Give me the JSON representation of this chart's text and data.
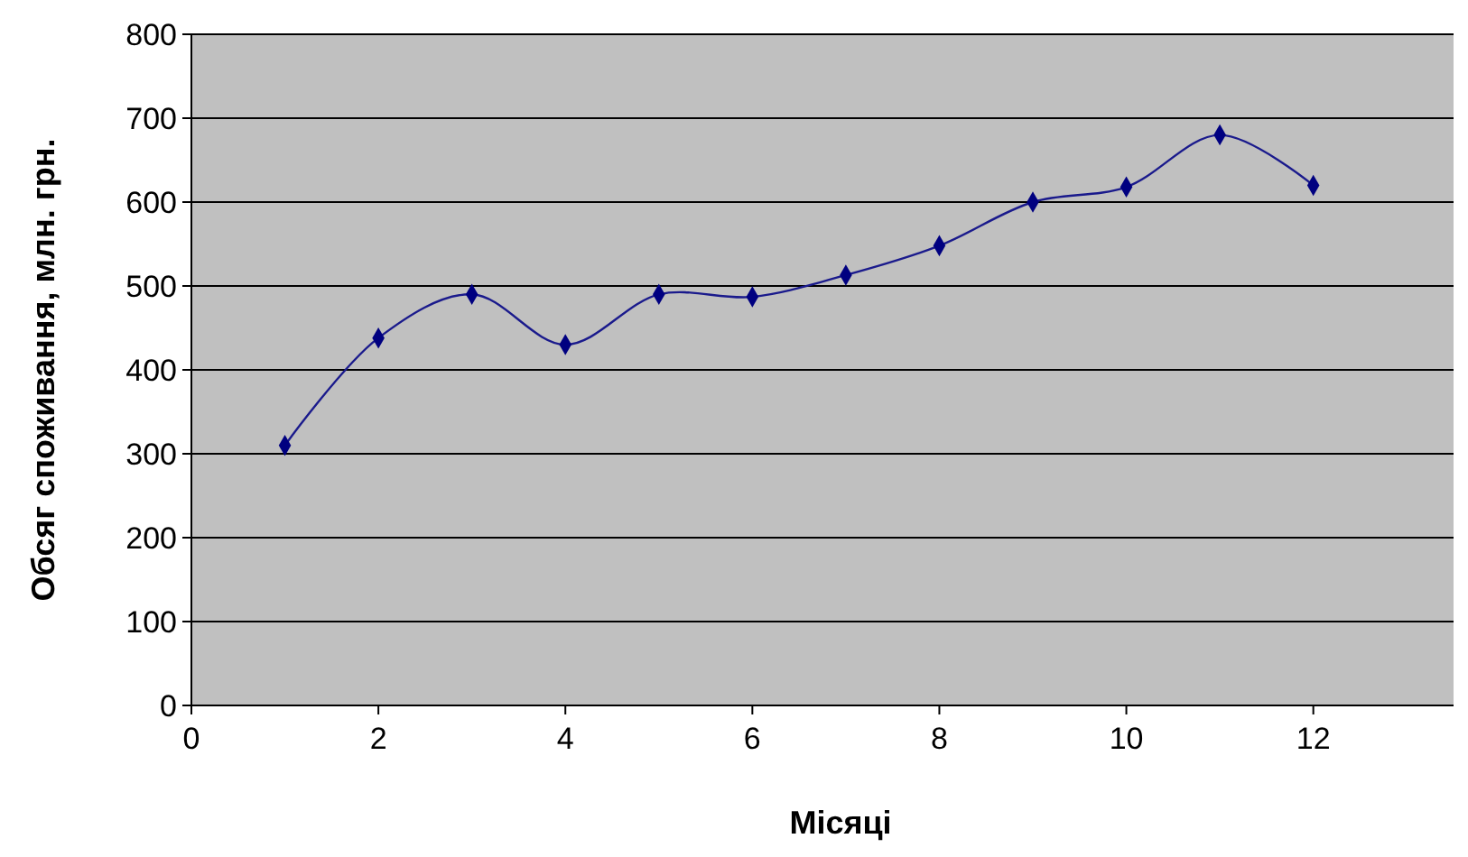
{
  "chart_data": {
    "type": "line",
    "xlabel": "Місяці",
    "ylabel": "Обсяг споживання, млн. грн.",
    "x": [
      1,
      2,
      3,
      4,
      5,
      6,
      7,
      8,
      9,
      10,
      11,
      12
    ],
    "series": [
      {
        "color": "#1a1a8c",
        "values": [
          310,
          438,
          490,
          430,
          490,
          487,
          513,
          548,
          600,
          618,
          680,
          620
        ]
      }
    ],
    "xlim": [
      0,
      13.5
    ],
    "xticks": [
      0,
      2,
      4,
      6,
      8,
      10,
      12
    ],
    "ylim": [
      0,
      800
    ],
    "yticks": [
      0,
      100,
      200,
      300,
      400,
      500,
      600,
      700,
      800
    ],
    "grid": "y",
    "marker": "diamond",
    "line_style": "solid"
  }
}
